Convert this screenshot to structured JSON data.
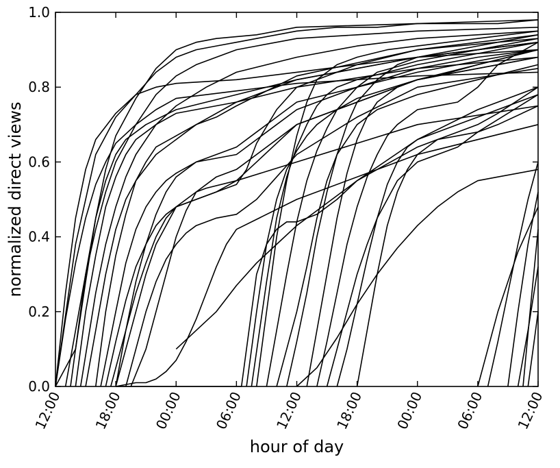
{
  "chart_data": {
    "type": "line",
    "title": "",
    "xlabel": "hour of day",
    "ylabel": "normalized direct views",
    "x_unit": "hours",
    "xlim": [
      0,
      48
    ],
    "ylim": [
      0.0,
      1.0
    ],
    "x_ticks": [
      {
        "value": 0,
        "label": "12:00"
      },
      {
        "value": 6,
        "label": "18:00"
      },
      {
        "value": 12,
        "label": "00:00"
      },
      {
        "value": 18,
        "label": "06:00"
      },
      {
        "value": 24,
        "label": "12:00"
      },
      {
        "value": 30,
        "label": "18:00"
      },
      {
        "value": 36,
        "label": "00:00"
      },
      {
        "value": 42,
        "label": "06:00"
      },
      {
        "value": 48,
        "label": "12:00"
      }
    ],
    "y_ticks": [
      {
        "value": 0.0,
        "label": "0.0"
      },
      {
        "value": 0.2,
        "label": "0.2"
      },
      {
        "value": 0.4,
        "label": "0.4"
      },
      {
        "value": 0.6,
        "label": "0.6"
      },
      {
        "value": 0.8,
        "label": "0.8"
      },
      {
        "value": 1.0,
        "label": "1.0"
      }
    ],
    "grid": false,
    "legend": "none",
    "line_color": "#000000",
    "series": [
      {
        "x": [
          0,
          1,
          2,
          3,
          4,
          6,
          8,
          10,
          12,
          18,
          24,
          30,
          36,
          42,
          48
        ],
        "y": [
          0,
          0.25,
          0.45,
          0.58,
          0.66,
          0.73,
          0.78,
          0.8,
          0.81,
          0.82,
          0.84,
          0.86,
          0.88,
          0.89,
          0.9
        ]
      },
      {
        "x": [
          0,
          1,
          2,
          3,
          4,
          5,
          6,
          8,
          10,
          12,
          18,
          24,
          36,
          48
        ],
        "y": [
          0,
          0.18,
          0.33,
          0.45,
          0.54,
          0.6,
          0.65,
          0.7,
          0.74,
          0.77,
          0.79,
          0.81,
          0.83,
          0.84
        ]
      },
      {
        "x": [
          0,
          2,
          3,
          4,
          5,
          6,
          8,
          10,
          12,
          14,
          16,
          20,
          24,
          36,
          48
        ],
        "y": [
          0,
          0.1,
          0.28,
          0.45,
          0.58,
          0.67,
          0.77,
          0.85,
          0.9,
          0.92,
          0.93,
          0.94,
          0.96,
          0.97,
          0.98
        ]
      },
      {
        "x": [
          1.5,
          3,
          4,
          5,
          6,
          7,
          9,
          12,
          18,
          24,
          30,
          36,
          42,
          48
        ],
        "y": [
          0,
          0.3,
          0.45,
          0.55,
          0.62,
          0.66,
          0.7,
          0.74,
          0.78,
          0.82,
          0.85,
          0.88,
          0.9,
          0.92
        ]
      },
      {
        "x": [
          2,
          3,
          4,
          5,
          6,
          7,
          8,
          10,
          12,
          18,
          24,
          36,
          48
        ],
        "y": [
          0,
          0.2,
          0.35,
          0.48,
          0.56,
          0.62,
          0.66,
          0.7,
          0.73,
          0.76,
          0.8,
          0.85,
          0.88
        ]
      },
      {
        "x": [
          2.5,
          4,
          5,
          6,
          7,
          8,
          9,
          10,
          12,
          15,
          18,
          24,
          30,
          36,
          48
        ],
        "y": [
          0,
          0.25,
          0.38,
          0.48,
          0.56,
          0.62,
          0.66,
          0.7,
          0.75,
          0.8,
          0.84,
          0.88,
          0.91,
          0.93,
          0.95
        ]
      },
      {
        "x": [
          3,
          4,
          5,
          6,
          7,
          8,
          10,
          12,
          14,
          18,
          24,
          36,
          48
        ],
        "y": [
          0,
          0.15,
          0.3,
          0.42,
          0.5,
          0.55,
          0.62,
          0.66,
          0.7,
          0.76,
          0.82,
          0.88,
          0.92
        ]
      },
      {
        "x": [
          4,
          5,
          6,
          7,
          8,
          9,
          10,
          12,
          14,
          16,
          18,
          24,
          36,
          48
        ],
        "y": [
          0,
          0.2,
          0.35,
          0.46,
          0.55,
          0.6,
          0.64,
          0.67,
          0.7,
          0.72,
          0.75,
          0.83,
          0.9,
          0.94
        ]
      },
      {
        "x": [
          4.5,
          6,
          7,
          8,
          9,
          10,
          11,
          12,
          14,
          18,
          20,
          22,
          24,
          30,
          36,
          42,
          48
        ],
        "y": [
          0,
          0.2,
          0.33,
          0.42,
          0.48,
          0.52,
          0.55,
          0.57,
          0.6,
          0.62,
          0.66,
          0.7,
          0.74,
          0.8,
          0.85,
          0.88,
          0.9
        ]
      },
      {
        "x": [
          5,
          6,
          7,
          8,
          9,
          10,
          11,
          12,
          14,
          16,
          18,
          20,
          22,
          24,
          36,
          48
        ],
        "y": [
          0,
          0.12,
          0.23,
          0.32,
          0.38,
          0.43,
          0.46,
          0.48,
          0.5,
          0.52,
          0.55,
          0.6,
          0.65,
          0.7,
          0.82,
          0.88
        ]
      },
      {
        "x": [
          5.5,
          7,
          8,
          9,
          10,
          11,
          12,
          14,
          16,
          18,
          19,
          20,
          22,
          24,
          30,
          36,
          48
        ],
        "y": [
          0,
          0.15,
          0.25,
          0.33,
          0.4,
          0.45,
          0.48,
          0.5,
          0.52,
          0.54,
          0.58,
          0.65,
          0.74,
          0.8,
          0.86,
          0.9,
          0.93
        ]
      },
      {
        "x": [
          6,
          7,
          8,
          9,
          10,
          11,
          12,
          14,
          16,
          18,
          20,
          22,
          24,
          36,
          48
        ],
        "y": [
          0,
          0.15,
          0.28,
          0.38,
          0.46,
          0.52,
          0.56,
          0.6,
          0.62,
          0.64,
          0.68,
          0.72,
          0.76,
          0.84,
          0.9
        ]
      },
      {
        "x": [
          6,
          7,
          8,
          9,
          10,
          11,
          12,
          13,
          14,
          15,
          18,
          24,
          36,
          48
        ],
        "y": [
          0,
          0.1,
          0.2,
          0.3,
          0.38,
          0.43,
          0.48,
          0.5,
          0.52,
          0.53,
          0.55,
          0.6,
          0.7,
          0.75
        ]
      },
      {
        "x": [
          7,
          8,
          9,
          10,
          11,
          12,
          13,
          14,
          15,
          16,
          18,
          20,
          22,
          24,
          30,
          36,
          48
        ],
        "y": [
          0,
          0.1,
          0.2,
          0.28,
          0.34,
          0.38,
          0.41,
          0.43,
          0.44,
          0.45,
          0.46,
          0.5,
          0.56,
          0.62,
          0.72,
          0.8,
          0.85
        ]
      },
      {
        "x": [
          7.5,
          9,
          10,
          11,
          12,
          13,
          14,
          16,
          18,
          20,
          24,
          36,
          48
        ],
        "y": [
          0,
          0.1,
          0.2,
          0.3,
          0.4,
          0.47,
          0.52,
          0.56,
          0.58,
          0.62,
          0.7,
          0.82,
          0.88
        ]
      },
      {
        "x": [
          6,
          8,
          9,
          10,
          11,
          12,
          13,
          14,
          15,
          16,
          17,
          18,
          24,
          36,
          48
        ],
        "y": [
          0,
          0.01,
          0.01,
          0.02,
          0.04,
          0.07,
          0.12,
          0.18,
          0.25,
          0.32,
          0.38,
          0.42,
          0.5,
          0.62,
          0.7
        ]
      },
      {
        "x": [
          6,
          12,
          16,
          18.5,
          19.5,
          20,
          21,
          22,
          23,
          24,
          26,
          28,
          30,
          36,
          42,
          48
        ],
        "y": [
          0,
          0,
          0,
          0,
          0.2,
          0.3,
          0.38,
          0.42,
          0.44,
          0.44,
          0.46,
          0.5,
          0.55,
          0.66,
          0.74,
          0.8
        ]
      },
      {
        "x": [
          19,
          20,
          21,
          22,
          23,
          24,
          25,
          26,
          28,
          30,
          36,
          42,
          48
        ],
        "y": [
          0,
          0.2,
          0.38,
          0.5,
          0.58,
          0.63,
          0.67,
          0.7,
          0.74,
          0.77,
          0.82,
          0.86,
          0.9
        ]
      },
      {
        "x": [
          19.5,
          21,
          22,
          23,
          24,
          25,
          26,
          27,
          28,
          30,
          36,
          42,
          48
        ],
        "y": [
          0,
          0.28,
          0.45,
          0.56,
          0.64,
          0.7,
          0.75,
          0.78,
          0.8,
          0.82,
          0.86,
          0.89,
          0.92
        ]
      },
      {
        "x": [
          20,
          21,
          22,
          23,
          24,
          25,
          26,
          28,
          30,
          33,
          36,
          42,
          48
        ],
        "y": [
          0,
          0.2,
          0.4,
          0.55,
          0.67,
          0.76,
          0.82,
          0.86,
          0.88,
          0.9,
          0.91,
          0.93,
          0.95
        ]
      },
      {
        "x": [
          21,
          22,
          23,
          24,
          25,
          26,
          27,
          28,
          30,
          32,
          36,
          42,
          48
        ],
        "y": [
          0,
          0.15,
          0.3,
          0.44,
          0.55,
          0.63,
          0.69,
          0.74,
          0.8,
          0.84,
          0.87,
          0.9,
          0.93
        ]
      },
      {
        "x": [
          22,
          23,
          24,
          25,
          26,
          27,
          28,
          30,
          32,
          34,
          36,
          42,
          48
        ],
        "y": [
          0,
          0.1,
          0.2,
          0.32,
          0.45,
          0.55,
          0.62,
          0.7,
          0.74,
          0.76,
          0.78,
          0.82,
          0.86
        ]
      },
      {
        "x": [
          23,
          24,
          25,
          26,
          27,
          28,
          29,
          30,
          32,
          34,
          36,
          42,
          48
        ],
        "y": [
          0,
          0.12,
          0.25,
          0.4,
          0.52,
          0.62,
          0.7,
          0.76,
          0.82,
          0.86,
          0.88,
          0.91,
          0.94
        ]
      },
      {
        "x": [
          25,
          26,
          27,
          28,
          29,
          30,
          31,
          32,
          34,
          36,
          38,
          42,
          48
        ],
        "y": [
          0,
          0.15,
          0.3,
          0.45,
          0.57,
          0.66,
          0.72,
          0.76,
          0.8,
          0.82,
          0.83,
          0.86,
          0.9
        ]
      },
      {
        "x": [
          26,
          27,
          28,
          29,
          30,
          31,
          32,
          33,
          34,
          36,
          40,
          42,
          44,
          48
        ],
        "y": [
          0,
          0.12,
          0.25,
          0.38,
          0.48,
          0.56,
          0.62,
          0.67,
          0.7,
          0.74,
          0.76,
          0.8,
          0.86,
          0.92
        ]
      },
      {
        "x": [
          27,
          28,
          29,
          30,
          31,
          32,
          33,
          34,
          36,
          38,
          40,
          42,
          48
        ],
        "y": [
          0,
          0.1,
          0.2,
          0.3,
          0.38,
          0.45,
          0.5,
          0.55,
          0.6,
          0.62,
          0.64,
          0.68,
          0.78
        ]
      },
      {
        "x": [
          28,
          29,
          30,
          31,
          32,
          33,
          34,
          35,
          36,
          38,
          40,
          42,
          48
        ],
        "y": [
          0,
          0.1,
          0.22,
          0.34,
          0.45,
          0.54,
          0.6,
          0.64,
          0.66,
          0.68,
          0.7,
          0.72,
          0.78
        ]
      },
      {
        "x": [
          30,
          31,
          32,
          33,
          34,
          35,
          36,
          37,
          38,
          40,
          42,
          44,
          48
        ],
        "y": [
          0,
          0.15,
          0.3,
          0.43,
          0.52,
          0.58,
          0.62,
          0.64,
          0.66,
          0.67,
          0.68,
          0.7,
          0.75
        ]
      },
      {
        "x": [
          24,
          26,
          28,
          30,
          32,
          34,
          36,
          38,
          40,
          42,
          44,
          46,
          48
        ],
        "y": [
          0,
          0.05,
          0.13,
          0.22,
          0.3,
          0.37,
          0.43,
          0.48,
          0.52,
          0.55,
          0.56,
          0.57,
          0.58
        ]
      },
      {
        "x": [
          12,
          16,
          18,
          20,
          22,
          24,
          26,
          28,
          30,
          32,
          34,
          36,
          38,
          40,
          42,
          44,
          48
        ],
        "y": [
          0.1,
          0.2,
          0.27,
          0.33,
          0.38,
          0.43,
          0.47,
          0.51,
          0.55,
          0.58,
          0.61,
          0.64,
          0.66,
          0.68,
          0.7,
          0.73,
          0.8
        ]
      },
      {
        "x": [
          42,
          43,
          44,
          45,
          46,
          47,
          48
        ],
        "y": [
          0,
          0.1,
          0.2,
          0.28,
          0.36,
          0.42,
          0.48
        ]
      },
      {
        "x": [
          43,
          44,
          45,
          46,
          47,
          48
        ],
        "y": [
          0,
          0.12,
          0.25,
          0.38,
          0.5,
          0.6
        ]
      },
      {
        "x": [
          45,
          46,
          47,
          48
        ],
        "y": [
          0,
          0.2,
          0.38,
          0.52
        ]
      },
      {
        "x": [
          46,
          47,
          48
        ],
        "y": [
          0,
          0.15,
          0.32
        ]
      },
      {
        "x": [
          46.5,
          47.2,
          48
        ],
        "y": [
          0,
          0.2,
          0.42
        ]
      },
      {
        "x": [
          47,
          47.5,
          48
        ],
        "y": [
          0,
          0.1,
          0.2
        ]
      },
      {
        "x": [
          0,
          2,
          4,
          6,
          8,
          10,
          12,
          14,
          16,
          18,
          20,
          22,
          24,
          28,
          32,
          36,
          40,
          44,
          48
        ],
        "y": [
          0,
          0.38,
          0.62,
          0.72,
          0.78,
          0.84,
          0.88,
          0.9,
          0.91,
          0.92,
          0.93,
          0.94,
          0.95,
          0.96,
          0.96,
          0.97,
          0.97,
          0.97,
          0.98
        ]
      },
      {
        "x": [
          1,
          2,
          3,
          4,
          5,
          6,
          8,
          10,
          12,
          14,
          16,
          18,
          20,
          24,
          30,
          36,
          48
        ],
        "y": [
          0,
          0.15,
          0.3,
          0.42,
          0.52,
          0.6,
          0.7,
          0.78,
          0.83,
          0.86,
          0.88,
          0.9,
          0.91,
          0.93,
          0.94,
          0.95,
          0.96
        ]
      }
    ]
  }
}
